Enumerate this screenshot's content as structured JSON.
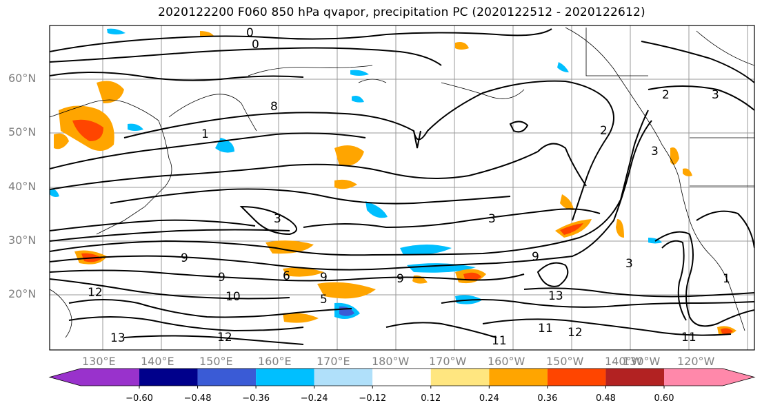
{
  "title": "2020122200 F060 850 hPa qvapor, precipitation PC (2020122512 - 2020122612)",
  "lat_labels": [
    "60°N",
    "50°N",
    "40°N",
    "30°N",
    "20°N"
  ],
  "lon_labels": [
    "130°E",
    "140°E",
    "150°E",
    "160°E",
    "170°E",
    "180°W",
    "170°W",
    "160°W",
    "150°W",
    "140°W",
    "130°W",
    "120°W"
  ],
  "colorbar": {
    "ticks": [
      "−0.60",
      "−0.48",
      "−0.36",
      "−0.24",
      "−0.12",
      "0.12",
      "0.24",
      "0.36",
      "0.48",
      "0.60"
    ],
    "colors": [
      "#9932cc",
      "#00008b",
      "#3a5bd6",
      "#00bfff",
      "#b0e0fa",
      "#ffffff",
      "#ffe680",
      "#ffa500",
      "#ff4500",
      "#b22222",
      "#ff88aa"
    ]
  },
  "contour_labels": [
    "0",
    "0",
    "1",
    "2",
    "2",
    "3",
    "3",
    "3",
    "3",
    "8",
    "9",
    "9",
    "9",
    "9",
    "9",
    "10",
    "11",
    "11",
    "11",
    "12",
    "12",
    "12",
    "13",
    "13",
    "6",
    "5",
    "1",
    "3"
  ]
}
